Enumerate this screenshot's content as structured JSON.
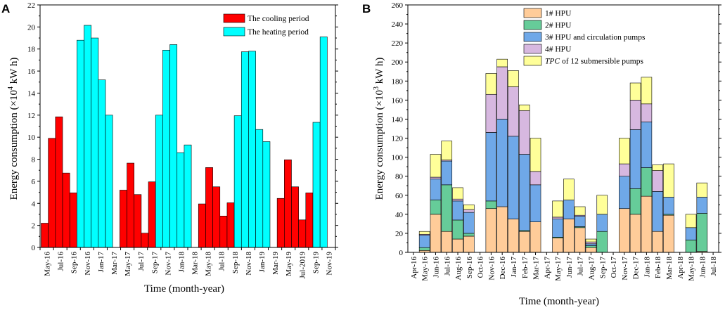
{
  "chart_data": [
    {
      "panel": "A",
      "type": "bar",
      "title": "",
      "xlabel": "Time (month-year)",
      "ylabel": {
        "pre": "Energy consumption (×10",
        "sup": "4",
        "post": " kW h)"
      },
      "ylim": [
        0,
        22
      ],
      "yticks": [
        0,
        2,
        4,
        6,
        8,
        10,
        12,
        14,
        16,
        18,
        20,
        22
      ],
      "legend": {
        "position": "top-right",
        "entries": [
          "The cooling period",
          "The heating period"
        ]
      },
      "colors": {
        "cooling": "#ff0000",
        "heating": "#00ffff"
      },
      "tick_labels": [
        "May-16",
        "Jul-16",
        "Sep-16",
        "Nov-16",
        "Jan-17",
        "Mar-17",
        "May-17",
        "Jul-17",
        "Sep-17",
        "Nov-17",
        "Jan-18",
        "Mar-18",
        "May-18",
        "Jul-18",
        "Sep-18",
        "Nov-18",
        "Jan-19",
        "Mar-19",
        "May-19",
        "Jul-2019",
        "Sep-19",
        "Nov-19"
      ],
      "series": [
        {
          "name": "The cooling period",
          "key": "cooling",
          "values": [
            2.2,
            9.9,
            11.85,
            6.75,
            4.95,
            null,
            null,
            null,
            null,
            null,
            null,
            5.2,
            7.65,
            4.8,
            1.3,
            5.95,
            null,
            null,
            null,
            null,
            null,
            null,
            3.95,
            7.25,
            5.5,
            2.85,
            4.05,
            null,
            null,
            null,
            null,
            null,
            null,
            4.45,
            7.95,
            5.5,
            2.5,
            4.95,
            null,
            null,
            null
          ]
        },
        {
          "name": "The heating period",
          "key": "heating",
          "values": [
            null,
            null,
            null,
            null,
            null,
            18.8,
            20.15,
            19.0,
            15.2,
            12.0,
            null,
            null,
            null,
            null,
            null,
            null,
            12.0,
            17.9,
            18.4,
            8.6,
            9.3,
            null,
            null,
            null,
            null,
            null,
            null,
            11.95,
            17.75,
            17.8,
            10.7,
            9.6,
            null,
            null,
            null,
            null,
            null,
            null,
            11.35,
            19.1,
            null
          ]
        }
      ]
    },
    {
      "panel": "B",
      "type": "bar",
      "stacked": true,
      "title": "",
      "xlabel": "Time (month-year)",
      "ylabel": {
        "pre": "Energy consumption (×10",
        "sup": "3",
        "post": " kW h)"
      },
      "ylim": [
        0,
        260
      ],
      "yticks": [
        0,
        20,
        40,
        60,
        80,
        100,
        120,
        140,
        160,
        180,
        200,
        220,
        240,
        260
      ],
      "legend": {
        "position": "top-right"
      },
      "categories": [
        "Apr-16",
        "May-16",
        "Jun-16",
        "Jul-16",
        "Aug-16",
        "Sep-16",
        "Oct-16",
        "Nov-16",
        "Dec-16",
        "Jan-17",
        "Feb-17",
        "Mar-17",
        "Apr-17",
        "May-17",
        "Jun-17",
        "Jul-17",
        "Aug-17",
        "Sep-17",
        "Oct-17",
        "Nov-17",
        "Dec-17",
        "Jan-18",
        "Feb-18",
        "Mar-18",
        "Apr-18",
        "May-18",
        "Jun-18",
        "Jul-18"
      ],
      "series": [
        {
          "name": "1# HPU",
          "label_parts": [
            {
              "t": "1# HPU",
              "i": false
            }
          ],
          "color": "#ffcc99",
          "values": [
            0,
            2,
            40,
            22,
            14,
            17,
            0,
            46,
            48,
            35,
            22,
            32,
            0,
            15,
            35,
            26,
            5,
            0,
            0,
            46,
            40,
            59,
            22,
            39,
            0,
            0,
            1,
            0
          ]
        },
        {
          "name": "2# HPU",
          "label_parts": [
            {
              "t": "2# HPU",
              "i": false
            }
          ],
          "color": "#66cc99",
          "values": [
            0,
            3,
            15,
            49,
            20,
            3,
            0,
            8,
            0,
            0,
            1,
            0,
            0,
            1,
            0,
            1,
            2,
            22,
            0,
            0,
            27,
            30,
            0,
            1,
            0,
            13,
            40,
            0
          ]
        },
        {
          "name": "3# HPU and circulation pumps",
          "label_parts": [
            {
              "t": "3# HPU and circulation pumps",
              "i": false
            }
          ],
          "color": "#6fa8e8",
          "values": [
            0,
            13,
            22,
            25,
            20,
            22,
            0,
            72,
            92,
            87,
            80,
            39,
            0,
            19,
            20,
            11,
            2,
            18,
            0,
            34,
            62,
            48,
            42,
            18,
            0,
            13,
            17,
            0
          ]
        },
        {
          "name": "4# HPU",
          "label_parts": [
            {
              "t": "4# HPU",
              "i": false
            }
          ],
          "color": "#d7b8e0",
          "values": [
            0,
            1,
            2,
            1,
            2,
            3,
            0,
            40,
            55,
            52,
            46,
            14,
            0,
            2,
            0,
            1,
            2,
            0,
            0,
            13,
            31,
            19,
            22,
            0,
            0,
            0,
            0,
            0
          ]
        },
        {
          "name": "TPC of 12 submersible pumps",
          "label_parts": [
            {
              "t": "TPC",
              "i": true
            },
            {
              "t": " of 12 submersible pumps",
              "i": false
            }
          ],
          "color": "#ffff99",
          "values": [
            0,
            3,
            24,
            20,
            12,
            5,
            0,
            22,
            8,
            17,
            6,
            35,
            0,
            17,
            22,
            9,
            3,
            20,
            0,
            27,
            18,
            28,
            6,
            35,
            0,
            14,
            15,
            0
          ]
        }
      ]
    }
  ]
}
